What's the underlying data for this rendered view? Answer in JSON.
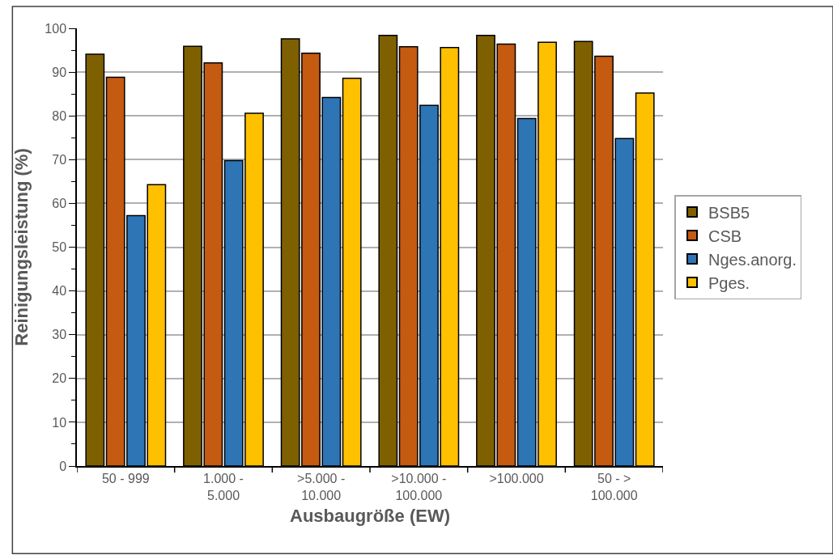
{
  "chart_data": {
    "type": "bar",
    "xlabel": "Ausbaugröße (EW)",
    "ylabel": "Reinigungsleistung (%)",
    "categories": [
      "50 - 999",
      "1.000 - 5.000",
      ">5.000 - 10.000",
      ">10.000 - 100.000",
      ">100.000",
      "50 - > 100.000"
    ],
    "series": [
      {
        "name": "BSB5",
        "color": "#7f6000",
        "values": [
          94.1,
          95.9,
          97.6,
          98.4,
          98.4,
          97.0
        ]
      },
      {
        "name": "CSB",
        "color": "#c55a11",
        "values": [
          88.8,
          92.1,
          94.3,
          95.8,
          96.4,
          93.6
        ]
      },
      {
        "name": "Nges.anorg.",
        "color": "#2e75b6",
        "values": [
          57.2,
          69.8,
          84.2,
          82.4,
          79.4,
          74.8
        ]
      },
      {
        "name": "Pges.",
        "color": "#ffc000",
        "values": [
          64.3,
          80.6,
          88.6,
          95.6,
          96.8,
          85.2
        ]
      }
    ],
    "ylim": [
      0,
      100
    ],
    "yticks": [
      0,
      10,
      20,
      30,
      40,
      50,
      60,
      70,
      80,
      90,
      100
    ],
    "grid": "y",
    "legend": "right"
  }
}
